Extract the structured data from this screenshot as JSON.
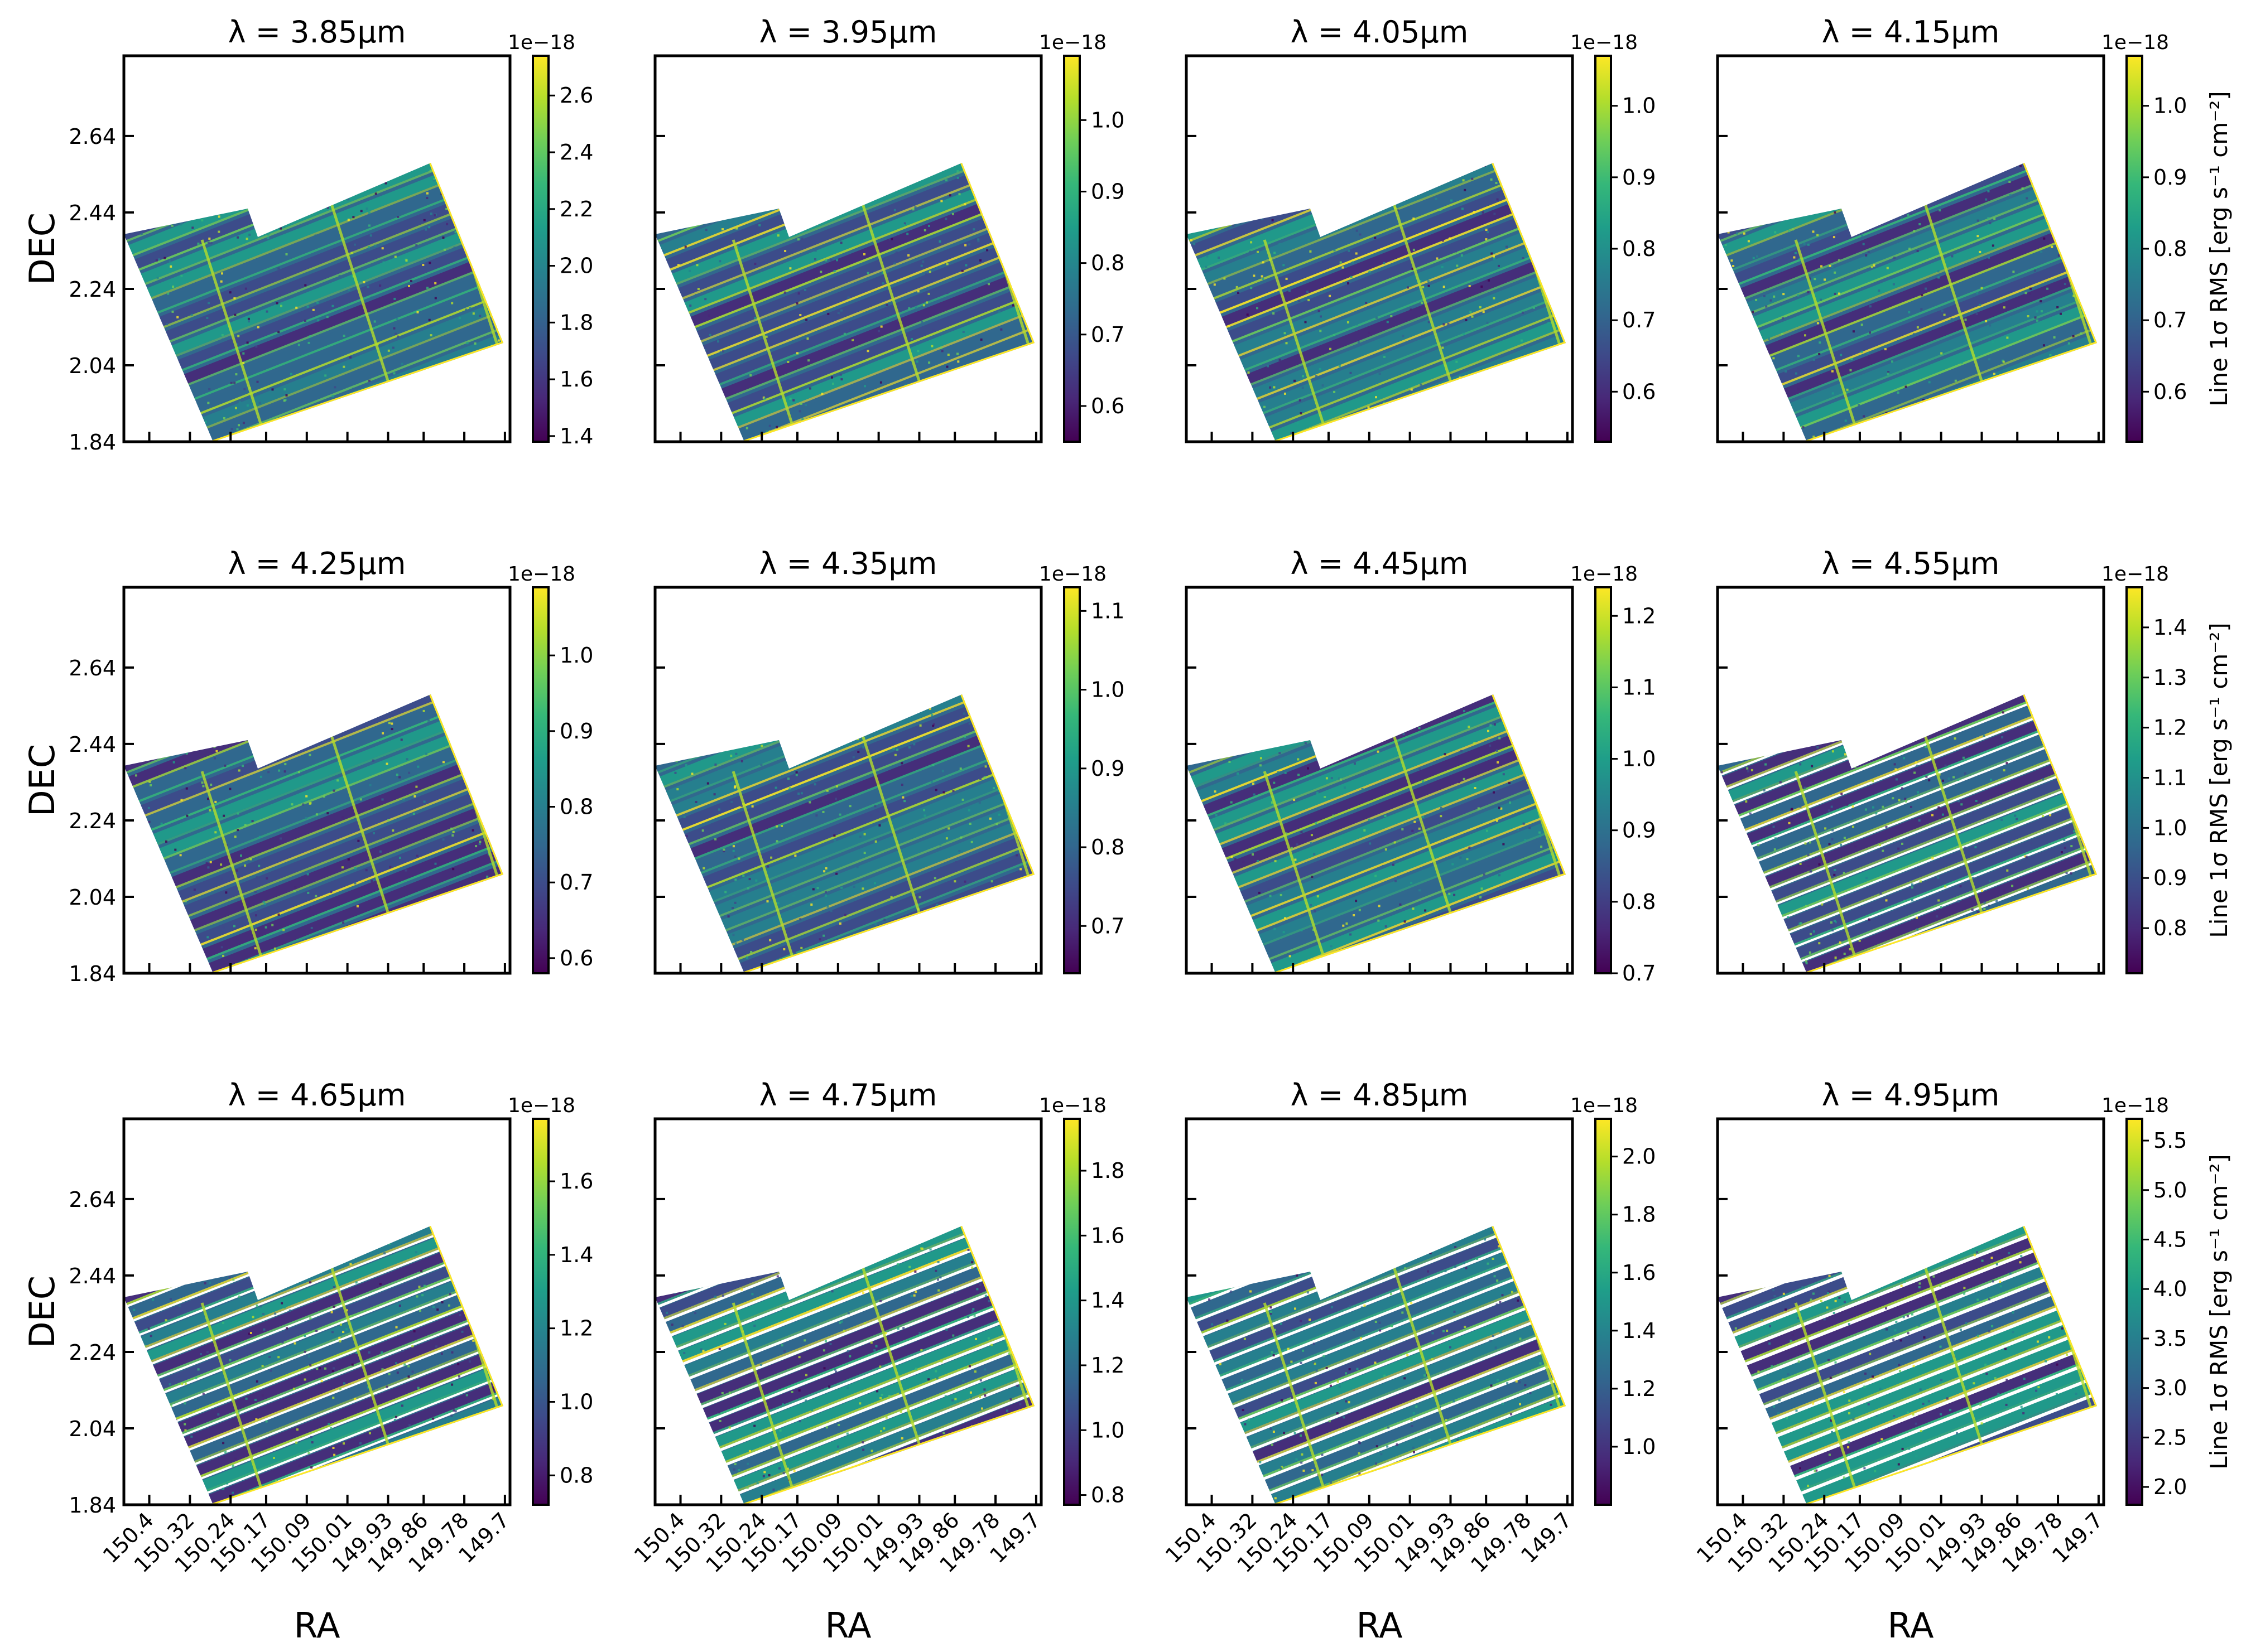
{
  "figure": {
    "xlabel": "RA",
    "ylabel": "DEC",
    "colorbar_label": "Line 1σ RMS [erg s⁻¹ cm⁻²]",
    "colorbar_exponent": "1e−18",
    "colormap": [
      "#440154",
      "#482878",
      "#3e4989",
      "#31688e",
      "#26828e",
      "#1f9e89",
      "#35b779",
      "#6ece58",
      "#b5de2b",
      "#fde725"
    ]
  },
  "chart_data": [
    {
      "type": "heatmap",
      "title": "λ = 3.85μm",
      "wavelength_um": 3.85,
      "cbar_range": [
        1.38,
        2.74
      ],
      "cbar_ticks": [
        "1.4",
        "1.6",
        "1.8",
        "2.0",
        "2.2",
        "2.4",
        "2.6"
      ]
    },
    {
      "type": "heatmap",
      "title": "λ = 3.95μm",
      "wavelength_um": 3.95,
      "cbar_range": [
        0.55,
        1.09
      ],
      "cbar_ticks": [
        "0.6",
        "0.7",
        "0.8",
        "0.9",
        "1.0"
      ]
    },
    {
      "type": "heatmap",
      "title": "λ = 4.05μm",
      "wavelength_um": 4.05,
      "cbar_range": [
        0.53,
        1.07
      ],
      "cbar_ticks": [
        "0.6",
        "0.7",
        "0.8",
        "0.9",
        "1.0"
      ]
    },
    {
      "type": "heatmap",
      "title": "λ = 4.15μm",
      "wavelength_um": 4.15,
      "cbar_range": [
        0.53,
        1.07
      ],
      "cbar_ticks": [
        "0.6",
        "0.7",
        "0.8",
        "0.9",
        "1.0"
      ]
    },
    {
      "type": "heatmap",
      "title": "λ = 4.25μm",
      "wavelength_um": 4.25,
      "cbar_range": [
        0.58,
        1.09
      ],
      "cbar_ticks": [
        "0.6",
        "0.7",
        "0.8",
        "0.9",
        "1.0"
      ]
    },
    {
      "type": "heatmap",
      "title": "λ = 4.35μm",
      "wavelength_um": 4.35,
      "cbar_range": [
        0.64,
        1.13
      ],
      "cbar_ticks": [
        "0.7",
        "0.8",
        "0.9",
        "1.0",
        "1.1"
      ]
    },
    {
      "type": "heatmap",
      "title": "λ = 4.45μm",
      "wavelength_um": 4.45,
      "cbar_range": [
        0.7,
        1.24
      ],
      "cbar_ticks": [
        "0.7",
        "0.8",
        "0.9",
        "1.0",
        "1.1",
        "1.2"
      ]
    },
    {
      "type": "heatmap",
      "title": "λ = 4.55μm",
      "wavelength_um": 4.55,
      "cbar_range": [
        0.71,
        1.48
      ],
      "cbar_ticks": [
        "0.8",
        "0.9",
        "1.0",
        "1.1",
        "1.2",
        "1.3",
        "1.4"
      ]
    },
    {
      "type": "heatmap",
      "title": "λ = 4.65μm",
      "wavelength_um": 4.65,
      "cbar_range": [
        0.72,
        1.77
      ],
      "cbar_ticks": [
        "0.8",
        "1.0",
        "1.2",
        "1.4",
        "1.6"
      ]
    },
    {
      "type": "heatmap",
      "title": "λ = 4.75μm",
      "wavelength_um": 4.75,
      "cbar_range": [
        0.77,
        1.96
      ],
      "cbar_ticks": [
        "0.8",
        "1.0",
        "1.2",
        "1.4",
        "1.6",
        "1.8"
      ]
    },
    {
      "type": "heatmap",
      "title": "λ = 4.85μm",
      "wavelength_um": 4.85,
      "cbar_range": [
        0.8,
        2.13
      ],
      "cbar_ticks": [
        "1.0",
        "1.2",
        "1.4",
        "1.6",
        "1.8",
        "2.0"
      ]
    },
    {
      "type": "heatmap",
      "title": "λ = 4.95μm",
      "wavelength_um": 4.95,
      "cbar_range": [
        1.82,
        5.72
      ],
      "cbar_ticks": [
        "2.0",
        "2.5",
        "3.0",
        "3.5",
        "4.0",
        "4.5",
        "5.0",
        "5.5"
      ]
    }
  ],
  "axes": {
    "ra_range": [
      150.45,
      149.69
    ],
    "dec_range": [
      1.84,
      2.85
    ],
    "ra_ticks": [
      "150.4",
      "150.32",
      "150.24",
      "150.17",
      "150.09",
      "150.01",
      "149.93",
      "149.86",
      "149.78",
      "149.7"
    ],
    "dec_ticks": [
      "1.84",
      "2.04",
      "2.24",
      "2.44",
      "2.64"
    ]
  }
}
